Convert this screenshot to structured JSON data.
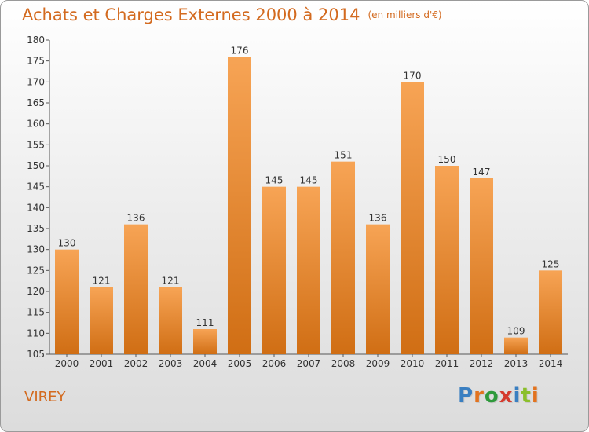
{
  "header": {
    "title": "Achats et Charges Externes 2000 à 2014",
    "subtitle": "(en milliers d'€)"
  },
  "footer": {
    "commune": "VIREY",
    "logo_text": "Proxiti",
    "logo_colors": [
      "#3a7fc1",
      "#e2731f",
      "#2f9a3c",
      "#d53b2e",
      "#3a7fc1",
      "#8bbf2a",
      "#e2731f"
    ]
  },
  "chart_data": {
    "type": "bar",
    "title": "Achats et Charges Externes 2000 à 2014",
    "subtitle": "(en milliers d'€)",
    "categories": [
      "2000",
      "2001",
      "2002",
      "2003",
      "2004",
      "2005",
      "2006",
      "2007",
      "2008",
      "2009",
      "2010",
      "2011",
      "2012",
      "2013",
      "2014"
    ],
    "values": [
      130,
      121,
      136,
      121,
      111,
      176,
      145,
      145,
      151,
      136,
      170,
      150,
      147,
      109,
      125
    ],
    "xlabel": "",
    "ylabel": "",
    "ylim": [
      105,
      180
    ],
    "yticks": [
      105,
      110,
      115,
      120,
      125,
      130,
      135,
      140,
      145,
      150,
      155,
      160,
      165,
      170,
      175,
      180
    ],
    "grid": false,
    "bar_color_top": "#f7a455",
    "bar_color_bottom": "#d06e14"
  }
}
